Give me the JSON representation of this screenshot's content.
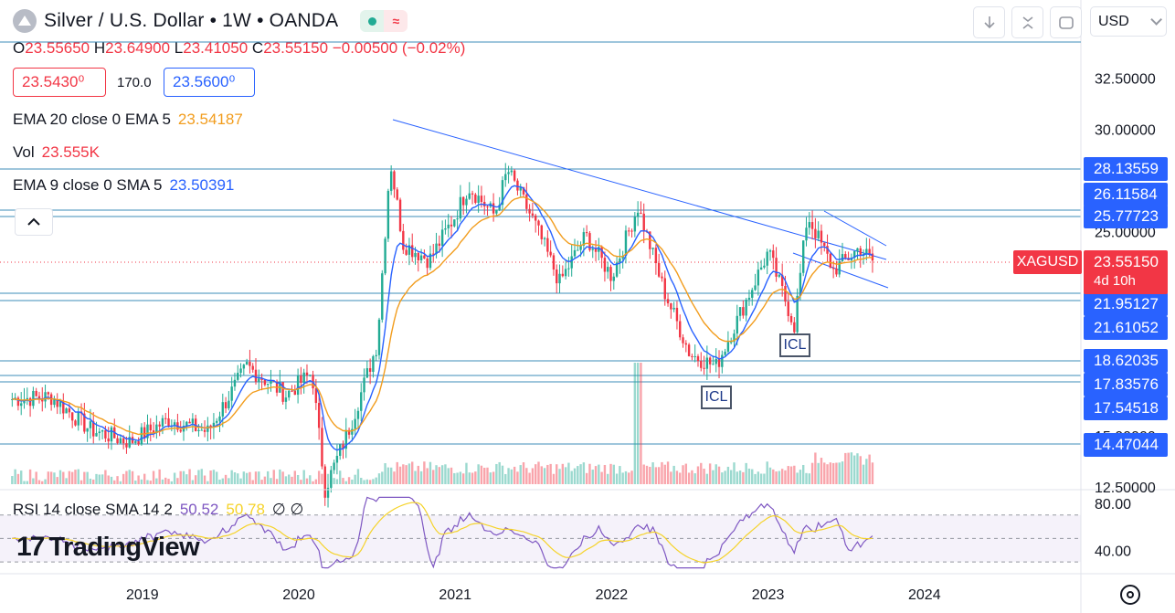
{
  "header": {
    "title": "Silver / U.S. Dollar • 1W • OANDA",
    "ohlc": [
      {
        "key": "O",
        "value": "23.55650"
      },
      {
        "key": "H",
        "value": "23.64900"
      },
      {
        "key": "L",
        "value": "23.41050"
      },
      {
        "key": "C",
        "value": "23.55150"
      }
    ],
    "change": "−0.00500 (−0.02%)"
  },
  "quote": {
    "sell": "23.5430⁰",
    "spread": "170.0",
    "buy": "23.5600⁰"
  },
  "indicators": {
    "ema_label": "EMA 20 close 0 EMA 5",
    "ema_value": "23.54187",
    "vol_label": "Vol",
    "vol_value": "23.555K",
    "ema9_label": "EMA 9 close 0 SMA 5",
    "ema9_value": "23.50391",
    "rsi_label": "RSI 14 close SMA 14 2",
    "rsi_value": "50.52",
    "rsi_sma": "50.78",
    "rsi_extra": "∅ ∅"
  },
  "toolbar": {
    "currency": "USD",
    "icons": [
      "arrow-down-icon",
      "collapse-icon",
      "screenshot-icon"
    ]
  },
  "price_labels": [
    "28.13559",
    "26.11584",
    "25.77723",
    "21.95127",
    "21.61052",
    "18.62035",
    "17.83576",
    "17.54518",
    "14.47044"
  ],
  "last_price": {
    "symbol": "XAGUSD",
    "price": "23.55150",
    "countdown": "4d 10h"
  },
  "annotations": [
    "ICL",
    "ICL"
  ],
  "branding": {
    "name": "TradingView"
  },
  "colors": {
    "up": "#22ab94",
    "down": "#f23645",
    "ema_fast": "#2962ff",
    "ema_slow": "#f29d1e",
    "rsi": "#7e57c2",
    "rsi_sma": "#f5d32a",
    "levels": "#3e8eb8"
  },
  "chart_data": {
    "type": "line",
    "title": "Silver / U.S. Dollar • 1W • OANDA",
    "xlabel": "",
    "ylabel": "",
    "x_ticks": [
      "2019",
      "2020",
      "2021",
      "2022",
      "2023",
      "2024"
    ],
    "y_ticks": [
      "32.50000",
      "30.00000",
      "25.00000",
      "15.00000",
      "12.50000"
    ],
    "ylim": [
      12.5,
      34.0
    ],
    "grid": false,
    "series": [
      {
        "name": "XAGUSD",
        "x": [
          "2018-03",
          "2018-06",
          "2018-09",
          "2018-12",
          "2019-03",
          "2019-06",
          "2019-09",
          "2019-12",
          "2020-02",
          "2020-03",
          "2020-05",
          "2020-07",
          "2020-08",
          "2020-09",
          "2020-11",
          "2021-01",
          "2021-02",
          "2021-04",
          "2021-05",
          "2021-07",
          "2021-09",
          "2021-11",
          "2022-01",
          "2022-03",
          "2022-05",
          "2022-07",
          "2022-09",
          "2022-11",
          "2023-01",
          "2023-03",
          "2023-04",
          "2023-06",
          "2023-08",
          "2023-09"
        ],
        "values": [
          16.8,
          16.9,
          15.3,
          14.7,
          15.8,
          15.2,
          18.4,
          17.0,
          18.1,
          12.4,
          15.6,
          19.5,
          28.5,
          24.4,
          23.6,
          25.8,
          27.2,
          25.8,
          28.0,
          25.5,
          22.5,
          24.8,
          22.8,
          26.2,
          22.1,
          19.0,
          18.4,
          21.2,
          24.0,
          20.4,
          25.8,
          23.1,
          24.2,
          23.55
        ]
      }
    ],
    "horizontal_levels": [
      28.13559,
      26.11584,
      25.77723,
      21.95127,
      21.61052,
      18.62035,
      17.83576,
      17.54518,
      14.47044
    ],
    "volume_peak": "2022-03",
    "rsi": {
      "ylim": [
        20,
        90
      ],
      "levels": [
        70,
        50,
        30
      ],
      "tick_labels": [
        "80.00",
        "40.00"
      ],
      "current": 50.52,
      "sma": 50.78
    }
  }
}
